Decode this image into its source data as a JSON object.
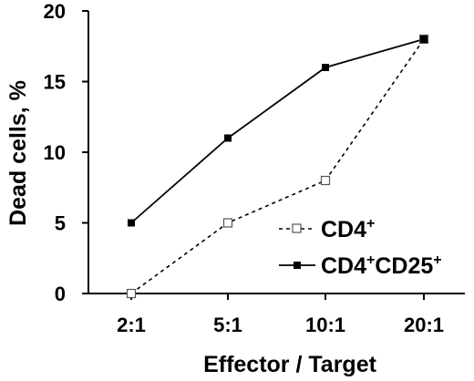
{
  "chart_data": {
    "type": "line",
    "title": "",
    "xlabel": "Effector / Target",
    "ylabel": "Dead cells, %",
    "categories": [
      "2:1",
      "5:1",
      "10:1",
      "20:1"
    ],
    "ylim": [
      0,
      20
    ],
    "yticks": [
      0,
      5,
      10,
      15,
      20
    ],
    "grid": false,
    "legend_position": "bottom-right",
    "series": [
      {
        "name": "CD4+",
        "label_base": "CD4",
        "label_sup": "+",
        "values": [
          0,
          5,
          8,
          18
        ],
        "line_style": "dashed",
        "marker": "open-square",
        "color": "#000000"
      },
      {
        "name": "CD4+CD25+",
        "label_base": "CD4",
        "label_sup": "+",
        "label_base2": "CD25",
        "label_sup2": "+",
        "values": [
          5,
          11,
          16,
          18
        ],
        "line_style": "solid",
        "marker": "filled-square",
        "color": "#000000"
      }
    ]
  }
}
